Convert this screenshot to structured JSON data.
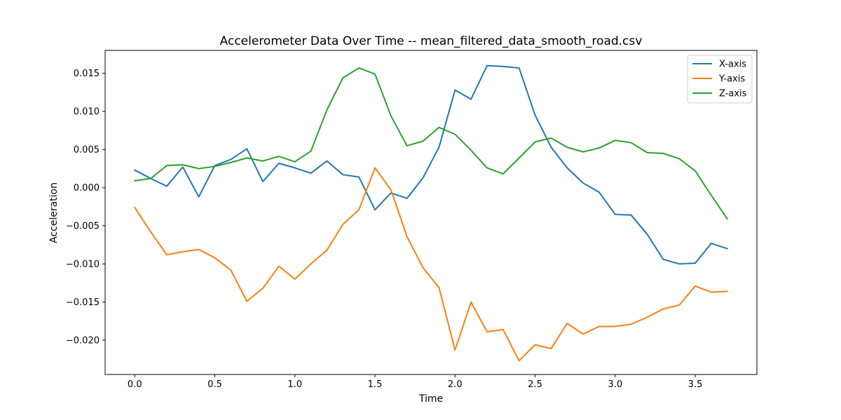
{
  "chart_data": {
    "type": "line",
    "title": "Accelerometer Data Over Time -- mean_filtered_data_smooth_road.csv",
    "xlabel": "Time",
    "ylabel": "Acceleration",
    "xlim": [
      -0.185,
      3.885
    ],
    "ylim": [
      -0.0245,
      0.018
    ],
    "xticks": [
      0.0,
      0.5,
      1.0,
      1.5,
      2.0,
      2.5,
      3.0,
      3.5
    ],
    "xtick_labels": [
      "0.0",
      "0.5",
      "1.0",
      "1.5",
      "2.0",
      "2.5",
      "3.0",
      "3.5"
    ],
    "yticks": [
      -0.02,
      -0.015,
      -0.01,
      -0.005,
      0.0,
      0.005,
      0.01,
      0.015
    ],
    "ytick_labels": [
      "−0.020",
      "−0.015",
      "−0.010",
      "−0.005",
      "0.000",
      "0.005",
      "0.010",
      "0.015"
    ],
    "grid": false,
    "legend_position": "top-right",
    "x": [
      0.0,
      0.1,
      0.2,
      0.3,
      0.4,
      0.5,
      0.6,
      0.7,
      0.8,
      0.9,
      1.0,
      1.1,
      1.2,
      1.3,
      1.4,
      1.5,
      1.6,
      1.7,
      1.8,
      1.9,
      2.0,
      2.1,
      2.2,
      2.3,
      2.4,
      2.5,
      2.6,
      2.7,
      2.8,
      2.9,
      3.0,
      3.1,
      3.2,
      3.3,
      3.4,
      3.5,
      3.6,
      3.7
    ],
    "series": [
      {
        "name": "X-axis",
        "color": "#1f77b4",
        "values": [
          0.0023,
          0.0012,
          0.0002,
          0.0027,
          -0.0012,
          0.0029,
          0.0037,
          0.0051,
          0.0008,
          0.0032,
          0.0026,
          0.0019,
          0.0035,
          0.0017,
          0.0014,
          -0.0029,
          -0.0007,
          -0.0014,
          0.0013,
          0.0053,
          0.0128,
          0.0116,
          0.016,
          0.0159,
          0.0157,
          0.0095,
          0.0053,
          0.0026,
          0.0006,
          -0.0006,
          -0.0035,
          -0.0036,
          -0.0061,
          -0.0094,
          -0.01,
          -0.0099,
          -0.0073,
          -0.008
        ]
      },
      {
        "name": "Y-axis",
        "color": "#ff7f0e",
        "values": [
          -0.0026,
          -0.0058,
          -0.0088,
          -0.0084,
          -0.0081,
          -0.0092,
          -0.0108,
          -0.0149,
          -0.0132,
          -0.0103,
          -0.012,
          -0.01,
          -0.0082,
          -0.0048,
          -0.0029,
          0.0026,
          -0.0003,
          -0.0064,
          -0.0105,
          -0.0131,
          -0.0213,
          -0.015,
          -0.0189,
          -0.0186,
          -0.0227,
          -0.0206,
          -0.0211,
          -0.0178,
          -0.0192,
          -0.0182,
          -0.0182,
          -0.0179,
          -0.017,
          -0.0159,
          -0.0154,
          -0.0129,
          -0.0137,
          -0.0136
        ]
      },
      {
        "name": "Z-axis",
        "color": "#2ca02c",
        "values": [
          0.0009,
          0.0012,
          0.0029,
          0.003,
          0.0025,
          0.0028,
          0.0033,
          0.0039,
          0.0035,
          0.0041,
          0.0034,
          0.0048,
          0.0102,
          0.0144,
          0.0157,
          0.0149,
          0.0094,
          0.0055,
          0.0061,
          0.0079,
          0.007,
          0.0049,
          0.0026,
          0.0018,
          0.0039,
          0.006,
          0.0065,
          0.0053,
          0.0047,
          0.0052,
          0.0062,
          0.0059,
          0.0046,
          0.0045,
          0.0038,
          0.0022,
          -0.001,
          -0.0041
        ]
      }
    ]
  }
}
